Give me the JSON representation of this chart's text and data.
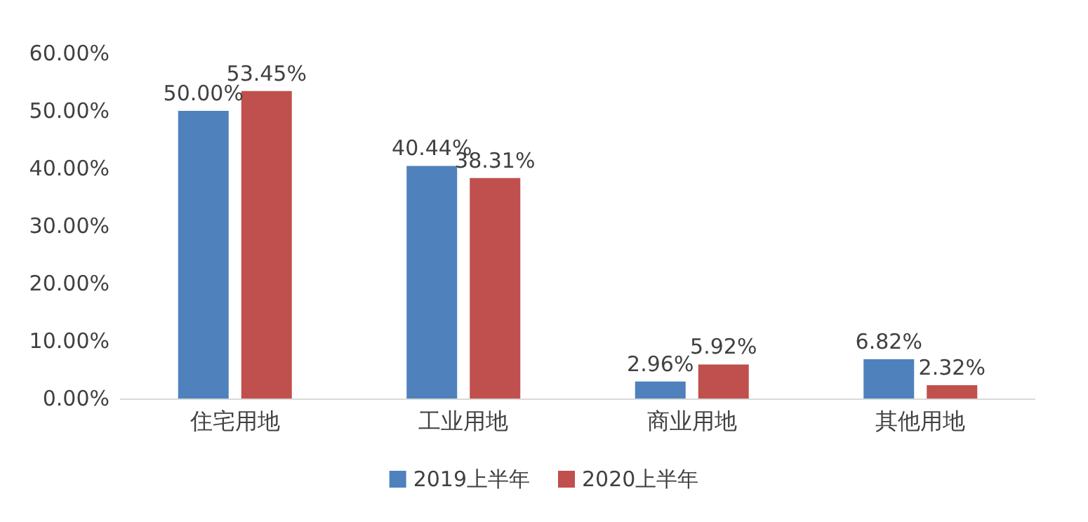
{
  "chart_data": {
    "type": "bar",
    "categories": [
      "住宅用地",
      "工业用地",
      "商业用地",
      "其他用地"
    ],
    "series": [
      {
        "name": "2019上半年",
        "color": "#4f81bd",
        "values": [
          50.0,
          40.44,
          2.96,
          6.82
        ],
        "value_labels": [
          "50.00%",
          "40.44%",
          "2.96%",
          "6.82%"
        ]
      },
      {
        "name": "2020上半年",
        "color": "#c0504d",
        "values": [
          53.45,
          38.31,
          5.92,
          2.32
        ],
        "value_labels": [
          "53.45%",
          "38.31%",
          "5.92%",
          "2.32%"
        ]
      }
    ],
    "ylim": [
      0,
      60
    ],
    "yticks": [
      {
        "value": 0,
        "label": "0.00%"
      },
      {
        "value": 10,
        "label": "10.00%"
      },
      {
        "value": 20,
        "label": "20.00%"
      },
      {
        "value": 30,
        "label": "30.00%"
      },
      {
        "value": 40,
        "label": "40.00%"
      },
      {
        "value": 50,
        "label": "50.00%"
      },
      {
        "value": 60,
        "label": "60.00%"
      }
    ],
    "grid": false,
    "legend": "bottom"
  }
}
